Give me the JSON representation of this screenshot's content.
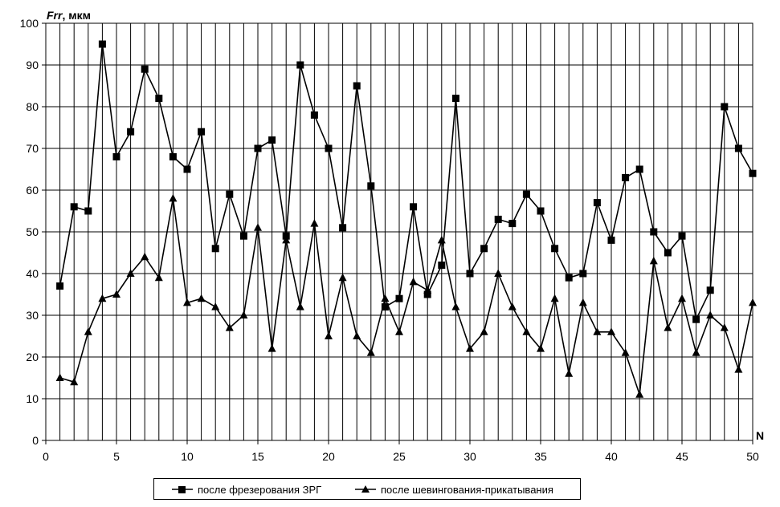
{
  "chart_data": {
    "type": "line",
    "ylabel_italic": "Frr",
    "ylabel_unit": ", мкм",
    "xlabel": "N",
    "xlim": [
      0,
      50
    ],
    "ylim": [
      0,
      100
    ],
    "x_ticks": [
      0,
      5,
      10,
      15,
      20,
      25,
      30,
      35,
      40,
      45,
      50
    ],
    "y_ticks": [
      0,
      10,
      20,
      30,
      40,
      50,
      60,
      70,
      80,
      90,
      100
    ],
    "grid": {
      "vertical_every": 1,
      "horizontal_every": 10
    },
    "legend_position": "bottom",
    "x": [
      1,
      2,
      3,
      4,
      5,
      6,
      7,
      8,
      9,
      10,
      11,
      12,
      13,
      14,
      15,
      16,
      17,
      18,
      19,
      20,
      21,
      22,
      23,
      24,
      25,
      26,
      27,
      28,
      29,
      30,
      31,
      32,
      33,
      34,
      35,
      36,
      37,
      38,
      39,
      40,
      41,
      42,
      43,
      44,
      45,
      46,
      47,
      48,
      49,
      50
    ],
    "series": [
      {
        "name": "после фрезерования ЗРГ",
        "marker": "square",
        "color": "#000000",
        "values": [
          37,
          56,
          55,
          95,
          68,
          74,
          89,
          82,
          68,
          65,
          74,
          46,
          59,
          49,
          70,
          72,
          49,
          90,
          78,
          70,
          51,
          85,
          61,
          32,
          34,
          56,
          35,
          42,
          82,
          40,
          46,
          53,
          52,
          59,
          55,
          46,
          39,
          40,
          57,
          48,
          63,
          65,
          50,
          45,
          49,
          29,
          36,
          80,
          70,
          64
        ]
      },
      {
        "name": "после шевингования-прикатывания",
        "marker": "triangle",
        "color": "#000000",
        "values": [
          15,
          14,
          26,
          34,
          35,
          40,
          44,
          39,
          58,
          33,
          34,
          32,
          27,
          30,
          51,
          22,
          48,
          32,
          52,
          25,
          39,
          25,
          21,
          34,
          26,
          38,
          36,
          48,
          32,
          22,
          26,
          40,
          32,
          26,
          22,
          34,
          16,
          33,
          26,
          26,
          21,
          11,
          43,
          27,
          34,
          21,
          30,
          27,
          17,
          33
        ]
      }
    ]
  }
}
